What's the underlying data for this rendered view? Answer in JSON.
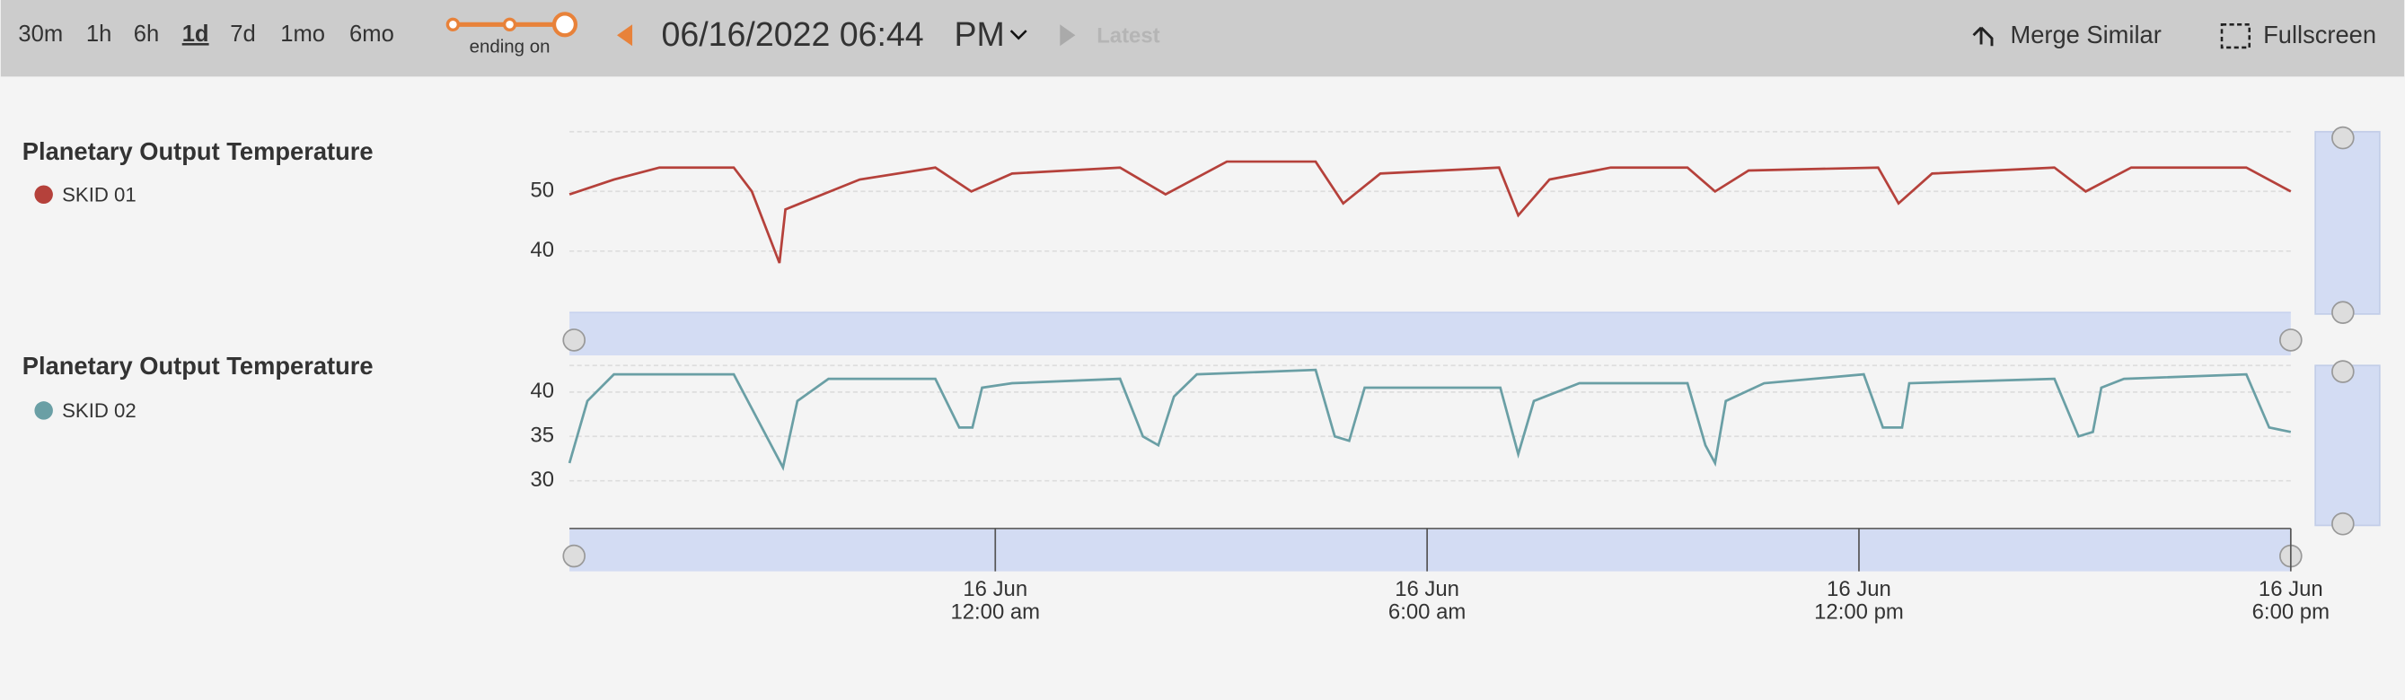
{
  "toolbar": {
    "ranges": [
      "30m",
      "1h",
      "6h",
      "1d",
      "7d",
      "1mo",
      "6mo"
    ],
    "selected": 3,
    "slider_label": "ending on",
    "datetime": "06/16/2022 06:44",
    "meridiem": "PM",
    "latest": "Latest",
    "merge": "Merge Similar",
    "fullscreen": "Fullscreen"
  },
  "chart_data": [
    {
      "type": "line",
      "title": "Planetary Output Temperature",
      "x": [
        "2022-06-15T18:05",
        "2022-06-15T18:42",
        "2022-06-15T19:20",
        "2022-06-15T20:22",
        "2022-06-15T20:37",
        "2022-06-15T21:00",
        "2022-06-15T21:05",
        "2022-06-15T22:07",
        "2022-06-15T23:10",
        "2022-06-15T23:40",
        "2022-06-16T00:14",
        "2022-06-16T01:44",
        "2022-06-16T02:22",
        "2022-06-16T03:13",
        "2022-06-16T04:27",
        "2022-06-16T04:50",
        "2022-06-16T05:21",
        "2022-06-16T07:00",
        "2022-06-16T07:16",
        "2022-06-16T07:42",
        "2022-06-16T08:33",
        "2022-06-16T09:37",
        "2022-06-16T10:00",
        "2022-06-16T10:28",
        "2022-06-16T12:16",
        "2022-06-16T12:33",
        "2022-06-16T13:01",
        "2022-06-16T14:43",
        "2022-06-16T15:09",
        "2022-06-16T15:47",
        "2022-06-16T17:23",
        "2022-06-16T18:00"
      ],
      "series": [
        {
          "name": "SKID 01",
          "color": "#b5413b",
          "values": [
            49.5,
            52,
            54,
            54,
            50,
            38,
            47,
            52,
            54,
            50,
            53,
            54,
            49.5,
            55,
            55,
            48,
            53,
            54,
            46,
            52,
            54,
            54,
            50,
            53.5,
            54,
            48,
            53,
            54,
            50,
            54,
            54,
            50
          ]
        }
      ],
      "xlim": [
        "2022-06-15T18:05",
        "2022-06-16T18:00"
      ],
      "ylim": [
        31,
        60
      ],
      "yticks": [
        40,
        50
      ],
      "grid": true
    },
    {
      "type": "line",
      "title": "Planetary Output Temperature",
      "x": [
        "2022-06-15T18:05",
        "2022-06-15T18:20",
        "2022-06-15T18:42",
        "2022-06-15T20:22",
        "2022-06-15T21:03",
        "2022-06-15T21:15",
        "2022-06-15T21:41",
        "2022-06-15T23:10",
        "2022-06-15T23:30",
        "2022-06-15T23:41",
        "2022-06-15T23:49",
        "2022-06-16T00:14",
        "2022-06-16T01:44",
        "2022-06-16T02:03",
        "2022-06-16T02:16",
        "2022-06-16T02:29",
        "2022-06-16T02:48",
        "2022-06-16T04:27",
        "2022-06-16T04:43",
        "2022-06-16T04:55",
        "2022-06-16T05:08",
        "2022-06-16T07:01",
        "2022-06-16T07:16",
        "2022-06-16T07:29",
        "2022-06-16T08:07",
        "2022-06-16T09:37",
        "2022-06-16T09:52",
        "2022-06-16T10:00",
        "2022-06-16T10:09",
        "2022-06-16T10:41",
        "2022-06-16T12:04",
        "2022-06-16T12:20",
        "2022-06-16T12:36",
        "2022-06-16T12:42",
        "2022-06-16T14:43",
        "2022-06-16T15:03",
        "2022-06-16T15:15",
        "2022-06-16T15:22",
        "2022-06-16T15:41",
        "2022-06-16T17:23",
        "2022-06-16T17:42",
        "2022-06-16T18:00"
      ],
      "series": [
        {
          "name": "SKID 02",
          "color": "#6a9fa5",
          "values": [
            32,
            39,
            42,
            42,
            31.5,
            39,
            41.5,
            41.5,
            36,
            36,
            40.5,
            41,
            41.5,
            35,
            34,
            39.5,
            42,
            42.5,
            35,
            34.5,
            40.5,
            40.5,
            33,
            39,
            41,
            41,
            34,
            32,
            39,
            41,
            42,
            36,
            36,
            41,
            41.5,
            35,
            35.5,
            40.5,
            41.5,
            42,
            36,
            35.5
          ]
        }
      ],
      "xlim": [
        "2022-06-15T18:05",
        "2022-06-16T18:00"
      ],
      "ylim": [
        26,
        43
      ],
      "yticks": [
        30,
        35,
        40
      ],
      "grid": true,
      "xticks": [
        {
          "value": "2022-06-16T00:00",
          "label": "16 Jun\n12:00 am"
        },
        {
          "value": "2022-06-16T06:00",
          "label": "16 Jun\n6:00 am"
        },
        {
          "value": "2022-06-16T12:00",
          "label": "16 Jun\n12:00 pm"
        },
        {
          "value": "2022-06-16T18:00",
          "label": "16 Jun\n6:00 pm"
        }
      ]
    }
  ]
}
